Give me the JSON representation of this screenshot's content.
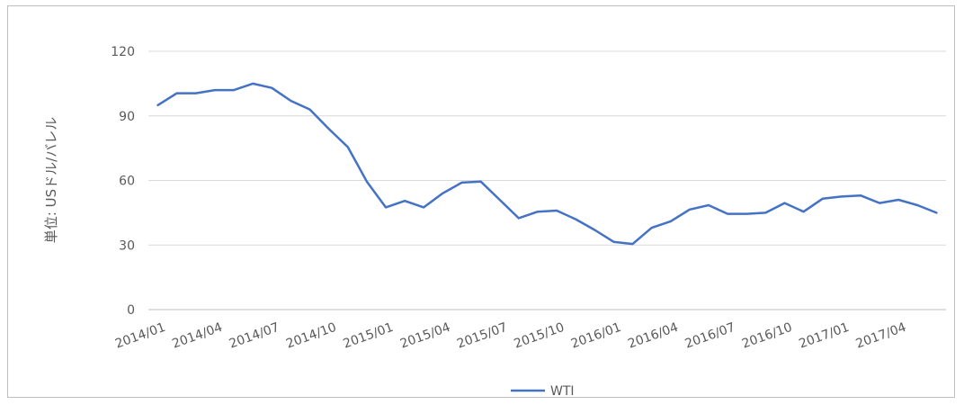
{
  "chart_data": {
    "type": "line",
    "title": "",
    "xlabel": "",
    "ylabel": "単位: USドル/バレル",
    "ylim": [
      0,
      120
    ],
    "yticks": [
      0,
      30,
      60,
      90,
      120
    ],
    "grid": true,
    "legend_position": "bottom",
    "x": [
      "2014/01",
      "2014/02",
      "2014/03",
      "2014/04",
      "2014/05",
      "2014/06",
      "2014/07",
      "2014/08",
      "2014/09",
      "2014/10",
      "2014/11",
      "2014/12",
      "2015/01",
      "2015/02",
      "2015/03",
      "2015/04",
      "2015/05",
      "2015/06",
      "2015/07",
      "2015/08",
      "2015/09",
      "2015/10",
      "2015/11",
      "2015/12",
      "2016/01",
      "2016/02",
      "2016/03",
      "2016/04",
      "2016/05",
      "2016/06",
      "2016/07",
      "2016/08",
      "2016/09",
      "2016/10",
      "2016/11",
      "2016/12",
      "2017/01",
      "2017/02",
      "2017/03",
      "2017/04",
      "2017/05",
      "2017/06"
    ],
    "x_tick_labels": [
      "2014/01",
      "2014/04",
      "2014/07",
      "2014/10",
      "2015/01",
      "2015/04",
      "2015/07",
      "2015/10",
      "2016/01",
      "2016/04",
      "2016/07",
      "2016/10",
      "2017/01",
      "2017/04"
    ],
    "series": [
      {
        "name": "WTI",
        "color": "#4472c4",
        "values": [
          95,
          100.5,
          100.5,
          102,
          102,
          105,
          103,
          97,
          93,
          84,
          75.5,
          59.5,
          47.5,
          50.5,
          47.5,
          54,
          59,
          59.5,
          51,
          42.5,
          45.5,
          46,
          42,
          37,
          31.5,
          30.5,
          38,
          41,
          46.5,
          48.5,
          44.5,
          44.5,
          45,
          49.5,
          45.5,
          51.5,
          52.5,
          53,
          49.5,
          51,
          48.5,
          45
        ]
      }
    ]
  }
}
